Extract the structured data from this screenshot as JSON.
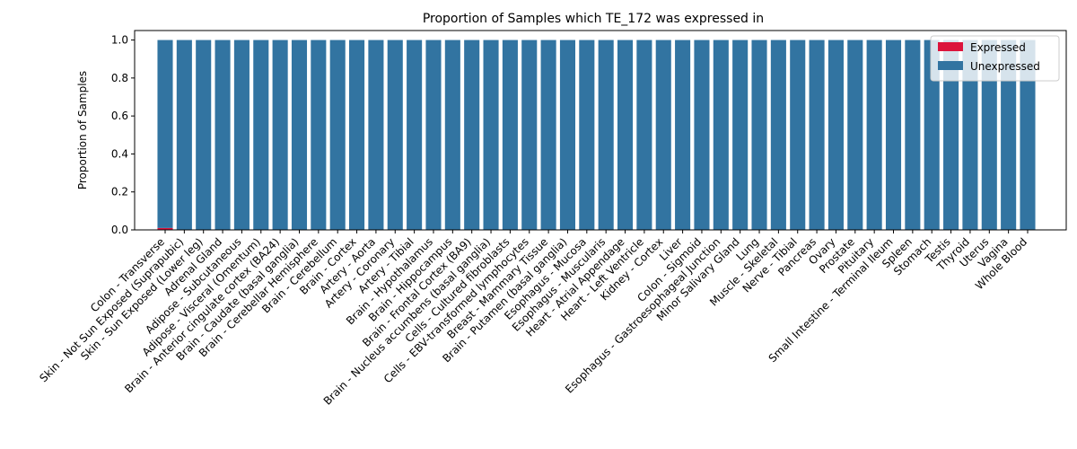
{
  "chart_data": {
    "type": "bar",
    "stacked": true,
    "title": "Proportion of Samples which TE_172 was expressed in",
    "xlabel": "",
    "ylabel": "Proportion of Samples",
    "ylim": [
      0,
      1.05
    ],
    "yticks": [
      "0.0",
      "0.2",
      "0.4",
      "0.6",
      "0.8",
      "1.0"
    ],
    "grid": false,
    "legend_position": "top-right",
    "categories": [
      "Colon - Transverse",
      "Skin - Not Sun Exposed (Suprapubic)",
      "Skin - Sun Exposed (Lower leg)",
      "Adrenal Gland",
      "Adipose - Subcutaneous",
      "Adipose - Visceral (Omentum)",
      "Brain - Anterior cingulate cortex (BA24)",
      "Brain - Caudate (basal ganglia)",
      "Brain - Cerebellar Hemisphere",
      "Brain - Cerebellum",
      "Brain - Cortex",
      "Artery - Aorta",
      "Artery - Coronary",
      "Artery - Tibial",
      "Brain - Hypothalamus",
      "Brain - Hippocampus",
      "Brain - Frontal Cortex (BA9)",
      "Brain - Nucleus accumbens (basal ganglia)",
      "Cells - Cultured fibroblasts",
      "Cells - EBV-transformed lymphocytes",
      "Breast - Mammary Tissue",
      "Brain - Putamen (basal ganglia)",
      "Esophagus - Mucosa",
      "Esophagus - Muscularis",
      "Heart - Atrial Appendage",
      "Heart - Left Ventricle",
      "Kidney - Cortex",
      "Liver",
      "Colon - Sigmoid",
      "Esophagus - Gastroesophageal Junction",
      "Minor Salivary Gland",
      "Lung",
      "Muscle - Skeletal",
      "Nerve - Tibial",
      "Pancreas",
      "Ovary",
      "Prostate",
      "Pituitary",
      "Small Intestine - Terminal Ileum",
      "Spleen",
      "Stomach",
      "Testis",
      "Thyroid",
      "Uterus",
      "Vagina",
      "Whole Blood"
    ],
    "series": [
      {
        "name": "Expressed",
        "color": "#dc143c",
        "values": [
          0.01,
          0,
          0,
          0,
          0,
          0,
          0,
          0,
          0,
          0,
          0,
          0,
          0,
          0,
          0,
          0,
          0,
          0,
          0,
          0,
          0,
          0,
          0,
          0,
          0,
          0,
          0,
          0,
          0,
          0,
          0,
          0,
          0,
          0,
          0,
          0,
          0,
          0,
          0,
          0,
          0,
          0,
          0,
          0,
          0,
          0
        ]
      },
      {
        "name": "Unexpressed",
        "color": "#3274a1",
        "values": [
          0.99,
          1,
          1,
          1,
          1,
          1,
          1,
          1,
          1,
          1,
          1,
          1,
          1,
          1,
          1,
          1,
          1,
          1,
          1,
          1,
          1,
          1,
          1,
          1,
          1,
          1,
          1,
          1,
          1,
          1,
          1,
          1,
          1,
          1,
          1,
          1,
          1,
          1,
          1,
          1,
          1,
          1,
          1,
          1,
          1,
          1
        ]
      }
    ]
  }
}
